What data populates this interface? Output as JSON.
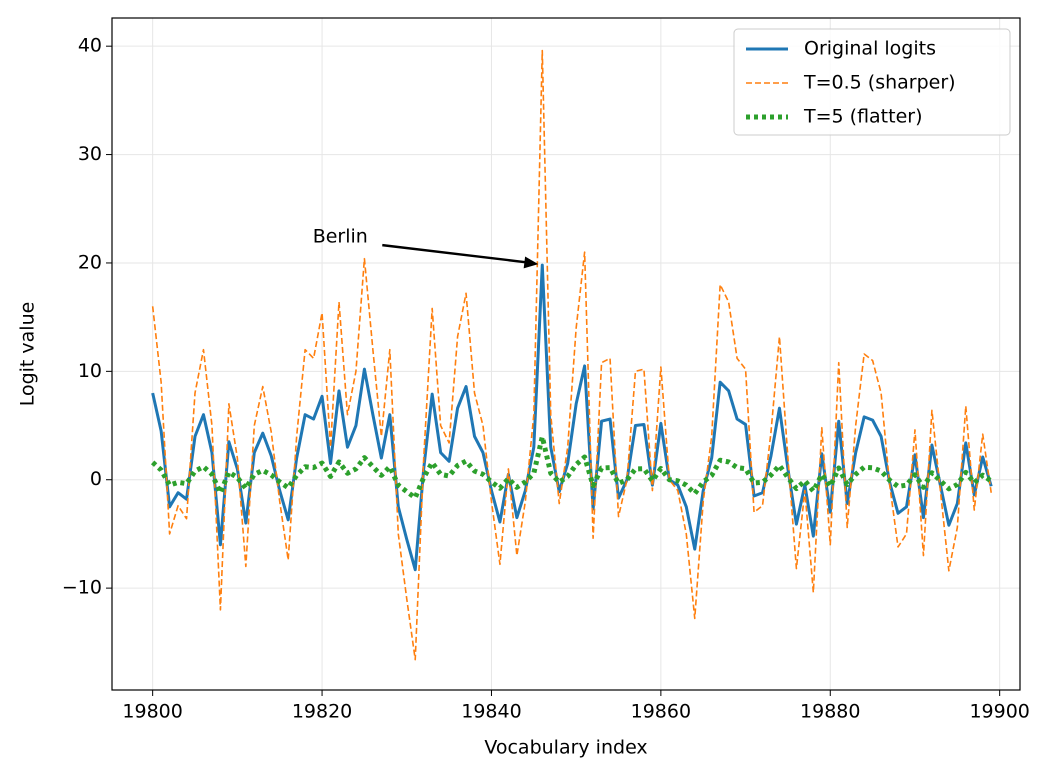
{
  "chart_data": {
    "type": "line",
    "xlabel": "Vocabulary index",
    "ylabel": "Logit value",
    "x": [
      19800,
      19801,
      19802,
      19803,
      19804,
      19805,
      19806,
      19807,
      19808,
      19809,
      19810,
      19811,
      19812,
      19813,
      19814,
      19815,
      19816,
      19817,
      19818,
      19819,
      19820,
      19821,
      19822,
      19823,
      19824,
      19825,
      19826,
      19827,
      19828,
      19829,
      19830,
      19831,
      19832,
      19833,
      19834,
      19835,
      19836,
      19837,
      19838,
      19839,
      19840,
      19841,
      19842,
      19843,
      19844,
      19845,
      19846,
      19847,
      19848,
      19849,
      19850,
      19851,
      19852,
      19853,
      19854,
      19855,
      19856,
      19857,
      19858,
      19859,
      19860,
      19861,
      19862,
      19863,
      19864,
      19865,
      19866,
      19867,
      19868,
      19869,
      19870,
      19871,
      19872,
      19873,
      19874,
      19875,
      19876,
      19877,
      19878,
      19879,
      19880,
      19881,
      19882,
      19883,
      19884,
      19885,
      19886,
      19887,
      19888,
      19889,
      19890,
      19891,
      19892,
      19893,
      19894,
      19895,
      19896,
      19897,
      19898,
      19899
    ],
    "series": [
      {
        "name": "Original logits",
        "color": "#1f77b4",
        "style": "solid",
        "values": [
          8,
          4.5,
          -2.5,
          -1.2,
          -1.8,
          4,
          6,
          2.5,
          -6,
          3.5,
          1,
          -4,
          2.5,
          4.3,
          2.2,
          -1,
          -3.7,
          2,
          6,
          5.6,
          7.7,
          1.5,
          8.2,
          3,
          5,
          10.2,
          6,
          2,
          6,
          -2.5,
          -5.5,
          -8.3,
          1,
          7.9,
          2.5,
          1.7,
          6.6,
          8.6,
          4,
          2.5,
          -1,
          -3.9,
          0.5,
          -3.5,
          -1,
          3,
          19.8,
          3,
          -1.1,
          1.5,
          7,
          10.5,
          -2.7,
          5.4,
          5.6,
          -1.7,
          0,
          5,
          5.1,
          -0.5,
          5.2,
          0,
          -0.5,
          -2.5,
          -6.4,
          -1,
          2,
          9,
          8.2,
          5.6,
          5.1,
          -1.5,
          -1.2,
          2.2,
          6.6,
          1,
          -4.1,
          -0.5,
          -5.2,
          2.4,
          -3,
          5.4,
          -2.2,
          2.5,
          5.8,
          5.5,
          4,
          -0.2,
          -3.1,
          -2.5,
          2.3,
          -3.5,
          3.2,
          -0.5,
          -4.2,
          -2.2,
          3.4,
          -1.4,
          2.1,
          -0.6
        ]
      },
      {
        "name": "T=0.5 (sharper)",
        "color": "#ff7f0e",
        "style": "dashed",
        "values": [
          16,
          9,
          -5,
          -2.4,
          -3.6,
          8,
          12,
          5,
          -12,
          7,
          2,
          -8,
          5,
          8.6,
          4.4,
          -2,
          -7.4,
          4,
          12,
          11.2,
          15.4,
          3,
          16.4,
          6,
          10,
          20.4,
          12,
          4,
          12,
          -5,
          -11,
          -16.6,
          2,
          15.8,
          5,
          3.4,
          13.2,
          17.2,
          8,
          5,
          -2,
          -7.8,
          1,
          -7,
          -2,
          6,
          39.6,
          6,
          -2.2,
          3,
          14,
          21,
          -5.4,
          10.8,
          11.2,
          -3.4,
          0,
          10,
          10.2,
          -1,
          10.4,
          0,
          -1,
          -5,
          -12.8,
          -2,
          4,
          18,
          16.4,
          11.2,
          10.2,
          -3,
          -2.4,
          4.4,
          13.2,
          2,
          -8.2,
          -1,
          -10.4,
          4.8,
          -6,
          10.8,
          -4.4,
          5,
          11.6,
          11,
          8,
          -0.4,
          -6.2,
          -5,
          4.6,
          -7,
          6.4,
          -1,
          -8.4,
          -4.4,
          6.8,
          -2.8,
          4.2,
          -1.2
        ]
      },
      {
        "name": "T=5 (flatter)",
        "color": "#2ca02c",
        "style": "dotted",
        "values": [
          1.6,
          0.9,
          -0.5,
          -0.24,
          -0.36,
          0.8,
          1.2,
          0.5,
          -1.2,
          0.7,
          0.2,
          -0.8,
          0.5,
          0.86,
          0.44,
          -0.2,
          -0.74,
          0.4,
          1.2,
          1.12,
          1.54,
          0.3,
          1.64,
          0.6,
          1,
          2.04,
          1.2,
          0.4,
          1.2,
          -0.5,
          -1.1,
          -1.66,
          0.2,
          1.58,
          0.5,
          0.34,
          1.32,
          1.72,
          0.8,
          0.5,
          -0.2,
          -0.78,
          0.1,
          -0.7,
          -0.2,
          0.6,
          3.96,
          0.6,
          -0.22,
          0.3,
          1.4,
          2.1,
          -0.54,
          1.08,
          1.12,
          -0.34,
          0,
          1,
          1.02,
          -0.1,
          1.04,
          0,
          -0.1,
          -0.5,
          -1.28,
          -0.2,
          0.4,
          1.8,
          1.64,
          1.12,
          1.02,
          -0.3,
          -0.24,
          0.44,
          1.32,
          0.2,
          -0.82,
          -0.1,
          -1.04,
          0.48,
          -0.6,
          1.08,
          -0.44,
          0.5,
          1.16,
          1.1,
          0.8,
          -0.04,
          -0.62,
          -0.5,
          0.46,
          -0.7,
          0.64,
          -0.1,
          -0.84,
          -0.44,
          0.68,
          -0.28,
          0.42,
          -0.12
        ]
      }
    ],
    "annotation": {
      "text": "Berlin",
      "series": 0,
      "index": 46
    },
    "xlim": [
      19795.2,
      19902.4
    ],
    "ylim": [
      -19.4,
      42.6
    ],
    "xticks": [
      19800,
      19820,
      19840,
      19860,
      19880,
      19900
    ],
    "yticks": [
      {
        "value": -10,
        "label": "−10"
      },
      0,
      10,
      20,
      30,
      40
    ],
    "grid": true,
    "legend": "upper right"
  }
}
